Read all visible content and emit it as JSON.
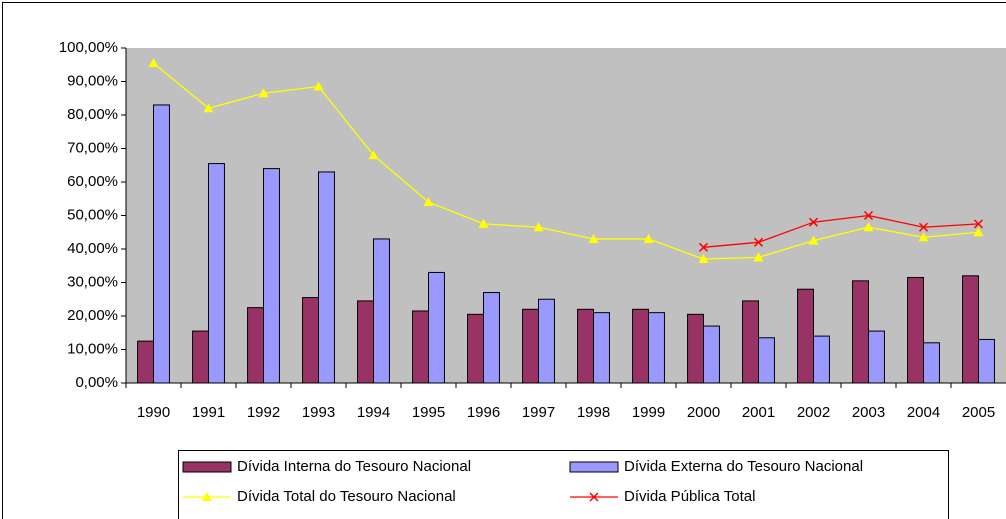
{
  "chart_data": {
    "type": "bar_line",
    "categories": [
      "1990",
      "1991",
      "1992",
      "1993",
      "1994",
      "1995",
      "1996",
      "1997",
      "1998",
      "1999",
      "2000",
      "2001",
      "2002",
      "2003",
      "2004",
      "2005"
    ],
    "series": [
      {
        "name": "Dívida Interna do Tesouro Nacional",
        "kind": "bar",
        "color": "#993366",
        "values": [
          12.5,
          15.5,
          22.5,
          25.5,
          24.5,
          21.5,
          20.5,
          22,
          22,
          22,
          20.5,
          24.5,
          28,
          30.5,
          31.5,
          32
        ]
      },
      {
        "name": "Dívida Externa do Tesouro Nacional",
        "kind": "bar",
        "color": "#9999ff",
        "values": [
          83,
          65.5,
          64,
          63,
          43,
          33,
          27,
          25,
          21,
          21,
          17,
          13.5,
          14,
          15.5,
          12,
          13
        ]
      },
      {
        "name": "Dívida Total do Tesouro Nacional",
        "kind": "line",
        "marker": "triangle",
        "color": "#ffff00",
        "values": [
          95.5,
          82,
          86.5,
          88.5,
          68,
          54,
          47.5,
          46.5,
          43,
          43,
          37,
          37.5,
          42.5,
          46.5,
          43.5,
          45
        ]
      },
      {
        "name": "Dívida Pública Total",
        "kind": "line",
        "marker": "x",
        "color": "#ff0000",
        "values": [
          null,
          null,
          null,
          null,
          null,
          null,
          null,
          null,
          null,
          null,
          40.5,
          42,
          48,
          50,
          46.5,
          47.5
        ]
      }
    ],
    "ylim": [
      0,
      100
    ],
    "yticks": [
      {
        "value": 0,
        "label": "0,00%"
      },
      {
        "value": 10,
        "label": "10,00%"
      },
      {
        "value": 20,
        "label": "20,00%"
      },
      {
        "value": 30,
        "label": "30,00%"
      },
      {
        "value": 40,
        "label": "40,00%"
      },
      {
        "value": 50,
        "label": "50,00%"
      },
      {
        "value": 60,
        "label": "60,00%"
      },
      {
        "value": 70,
        "label": "70,00%"
      },
      {
        "value": 80,
        "label": "80,00%"
      },
      {
        "value": 90,
        "label": "90,00%"
      },
      {
        "value": 100,
        "label": "100,00%"
      }
    ],
    "plot_background": "#c0c0c0",
    "legend": "bottom"
  }
}
